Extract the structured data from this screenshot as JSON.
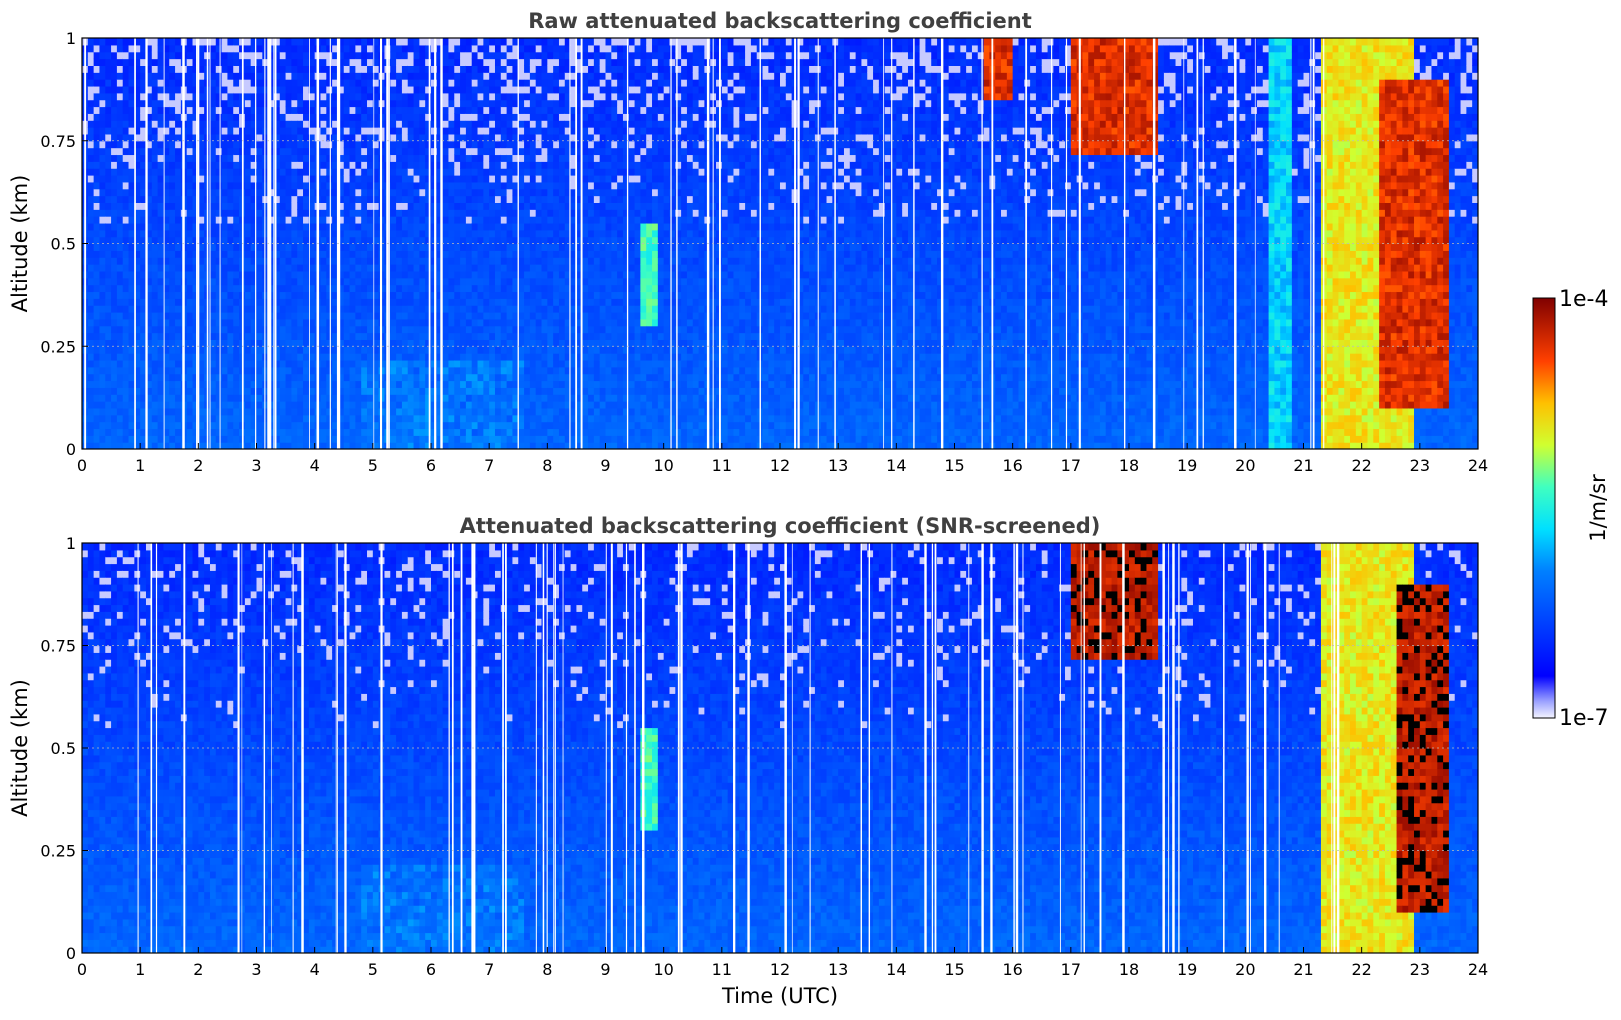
{
  "chart_data": [
    {
      "type": "heatmap",
      "title": "Raw attenuated backscattering coefficient",
      "xlabel": "",
      "ylabel": "Altitude (km)",
      "xlim": [
        0,
        24
      ],
      "ylim": [
        0,
        1
      ],
      "xticks": [
        "0",
        "1",
        "2",
        "3",
        "4",
        "5",
        "6",
        "7",
        "8",
        "9",
        "10",
        "11",
        "12",
        "13",
        "14",
        "15",
        "16",
        "17",
        "18",
        "19",
        "20",
        "21",
        "22",
        "23",
        "24"
      ],
      "yticks": [
        "0",
        "0.25",
        "0.5",
        "0.75",
        "1"
      ],
      "grid": true,
      "colormap": "jet",
      "color_scale": "log",
      "features": [
        {
          "x_range": [
            4.8,
            7.6
          ],
          "y_range": [
            0,
            0.22
          ],
          "level": 0.38
        },
        {
          "x_range": [
            9.6,
            9.9
          ],
          "y_range": [
            0.3,
            0.55
          ],
          "level": 0.6
        },
        {
          "x_range": [
            15.5,
            16.0
          ],
          "y_range": [
            0.85,
            1.0
          ],
          "level": 0.95
        },
        {
          "x_range": [
            17.0,
            18.5
          ],
          "y_range": [
            0.72,
            1.0
          ],
          "level": 0.95
        },
        {
          "x_range": [
            20.4,
            20.8
          ],
          "y_range": [
            0,
            1.0
          ],
          "level": 0.5
        },
        {
          "x_range": [
            21.3,
            22.9
          ],
          "y_range": [
            0,
            1.0
          ],
          "level": 0.75
        },
        {
          "x_range": [
            22.3,
            23.5
          ],
          "y_range": [
            0.1,
            0.9
          ],
          "level": 0.95
        }
      ]
    },
    {
      "type": "heatmap",
      "title": "Attenuated backscattering coefficient (SNR-screened)",
      "xlabel": "Time (UTC)",
      "ylabel": "Altitude (km)",
      "xlim": [
        0,
        24
      ],
      "ylim": [
        0,
        1
      ],
      "xticks": [
        "0",
        "1",
        "2",
        "3",
        "4",
        "5",
        "6",
        "7",
        "8",
        "9",
        "10",
        "11",
        "12",
        "13",
        "14",
        "15",
        "16",
        "17",
        "18",
        "19",
        "20",
        "21",
        "22",
        "23",
        "24"
      ],
      "yticks": [
        "0",
        "0.25",
        "0.5",
        "0.75",
        "1"
      ],
      "grid": true,
      "colormap": "jet",
      "color_scale": "log",
      "features": [
        {
          "x_range": [
            4.8,
            7.6
          ],
          "y_range": [
            0,
            0.22
          ],
          "level": 0.38
        },
        {
          "x_range": [
            9.6,
            9.9
          ],
          "y_range": [
            0.3,
            0.55
          ],
          "level": 0.6
        },
        {
          "x_range": [
            17.0,
            18.5
          ],
          "y_range": [
            0.72,
            1.0
          ],
          "level": 1.0
        },
        {
          "x_range": [
            21.3,
            22.9
          ],
          "y_range": [
            0,
            1.0
          ],
          "level": 0.75
        },
        {
          "x_range": [
            22.6,
            23.5
          ],
          "y_range": [
            0.1,
            0.9
          ],
          "level": 1.0
        }
      ]
    }
  ],
  "colorbar": {
    "label": "1/m/sr",
    "max_label": "1e-4",
    "min_label": "1e-7",
    "colormap": "jet"
  }
}
